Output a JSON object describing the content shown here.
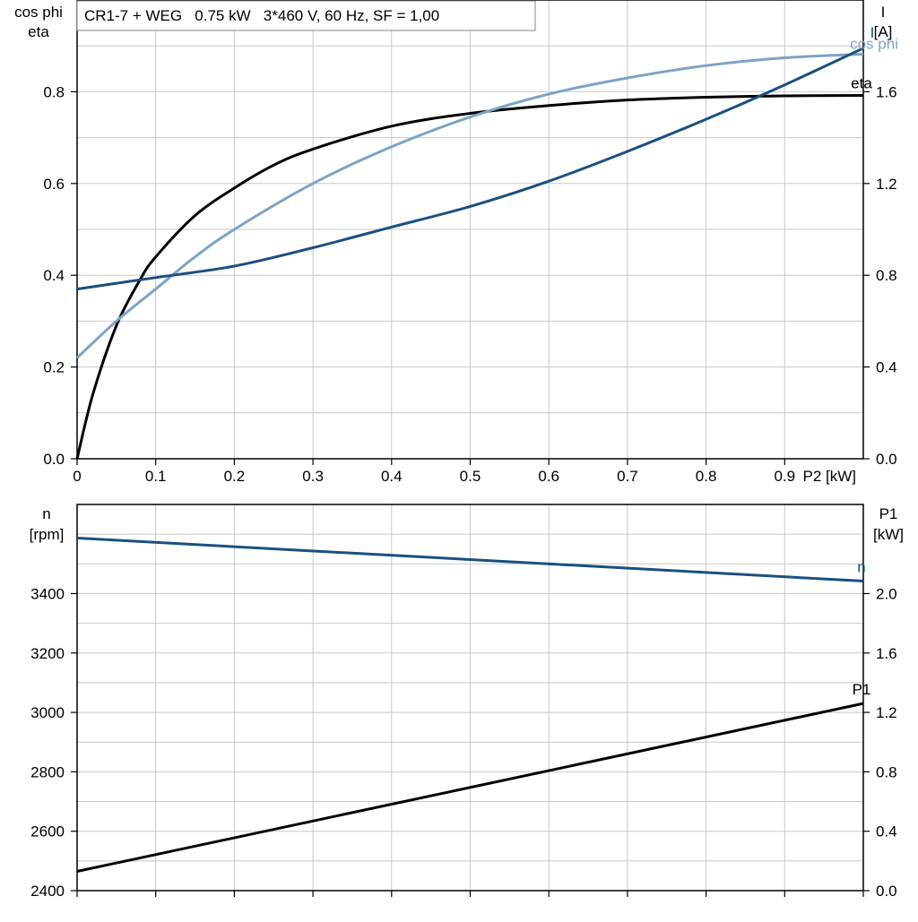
{
  "chart_data": [
    {
      "type": "line",
      "title": "CR1-7 + WEG   0.75 kW   3*460 V, 60 Hz, SF = 1,00",
      "xlabel": "P2 [kW]",
      "ylabel_left": [
        "cos phi",
        "eta"
      ],
      "ylabel_right": [
        "I",
        "[A]"
      ],
      "xlim": [
        0,
        1.0
      ],
      "x_ticks": [
        "0",
        "0.1",
        "0.2",
        "0.3",
        "0.4",
        "0.5",
        "0.6",
        "0.7",
        "0.8",
        "0.9"
      ],
      "ylim_left": [
        0,
        1.0
      ],
      "y_ticks_left": [
        "0.0",
        "0.2",
        "0.4",
        "0.6",
        "0.8"
      ],
      "ylim_right": [
        0,
        2.0
      ],
      "y_ticks_right": [
        "0.0",
        "0.4",
        "0.8",
        "1.2",
        "1.6"
      ],
      "grid": true,
      "series": [
        {
          "name": "eta",
          "axis": "left",
          "color": "#000000",
          "x": [
            0,
            0.02,
            0.05,
            0.08,
            0.1,
            0.15,
            0.2,
            0.25,
            0.3,
            0.4,
            0.5,
            0.6,
            0.7,
            0.8,
            0.9,
            1.0
          ],
          "y": [
            0,
            0.14,
            0.29,
            0.39,
            0.44,
            0.53,
            0.59,
            0.64,
            0.675,
            0.725,
            0.753,
            0.77,
            0.782,
            0.788,
            0.791,
            0.792
          ]
        },
        {
          "name": "cos phi",
          "axis": "left",
          "color": "#7ea3c4",
          "x": [
            0,
            0.05,
            0.1,
            0.15,
            0.2,
            0.3,
            0.4,
            0.5,
            0.6,
            0.7,
            0.8,
            0.9,
            1.0
          ],
          "y": [
            0.22,
            0.3,
            0.37,
            0.44,
            0.5,
            0.6,
            0.68,
            0.745,
            0.795,
            0.83,
            0.857,
            0.874,
            0.882
          ]
        },
        {
          "name": "I",
          "axis": "right",
          "color": "#1a4f80",
          "x": [
            0,
            0.1,
            0.2,
            0.3,
            0.4,
            0.5,
            0.6,
            0.7,
            0.8,
            0.9,
            1.0
          ],
          "y": [
            0.74,
            0.79,
            0.84,
            0.92,
            1.01,
            1.1,
            1.21,
            1.34,
            1.48,
            1.63,
            1.79
          ]
        }
      ]
    },
    {
      "type": "line",
      "xlim": [
        0,
        1.0
      ],
      "ylabel_left": [
        "n",
        "[rpm]"
      ],
      "ylabel_right": [
        "P1",
        "[kW]"
      ],
      "ylim_left": [
        2400,
        3700
      ],
      "y_ticks_left": [
        "2400",
        "2600",
        "2800",
        "3000",
        "3200",
        "3400"
      ],
      "ylim_right": [
        0,
        2.6
      ],
      "y_ticks_right": [
        "0.0",
        "0.4",
        "0.8",
        "1.2",
        "1.6",
        "2.0"
      ],
      "grid": true,
      "series": [
        {
          "name": "n",
          "axis": "left",
          "color": "#1a4f80",
          "x": [
            0,
            1.0
          ],
          "y": [
            3587,
            3442
          ]
        },
        {
          "name": "P1",
          "axis": "right",
          "color": "#000000",
          "x": [
            0,
            1.0
          ],
          "y": [
            0.13,
            1.26
          ]
        }
      ]
    }
  ]
}
